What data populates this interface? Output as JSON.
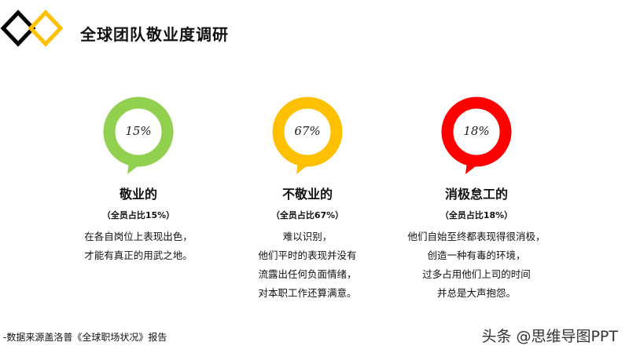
{
  "header": {
    "title": "全球团队敬业度调研"
  },
  "items": [
    {
      "percent": "15%",
      "name": "敬业的",
      "subtitle": "（全员占比15%）",
      "description": [
        "在各自岗位上表现出色，",
        "才能有真正的用武之地。"
      ],
      "color": "#92d050",
      "value": 15
    },
    {
      "percent": "67%",
      "name": "不敬业的",
      "subtitle": "（全员占比67%）",
      "description": [
        "难以识别，",
        "他们平时的表现并没有",
        "流露出任何负面情绪，",
        "对本职工作还算满意。"
      ],
      "color": "#ffc000",
      "value": 67
    },
    {
      "percent": "18%",
      "name": "消极怠工的",
      "subtitle": "（全员占比18%）",
      "description": [
        "他们自始至终都表现得很消极，",
        "创造一种有毒的环境，",
        "过多占用他们上司的时间",
        "并总是大声抱怨。"
      ],
      "color": "#ff0000",
      "value": 18
    }
  ],
  "footer": {
    "source": "-数据来源盖洛普《全球职场状况》报告",
    "watermark": "头条 @思维导图PPT"
  },
  "colors": {
    "logo_left": "#000000",
    "logo_right": "#ffc000"
  }
}
